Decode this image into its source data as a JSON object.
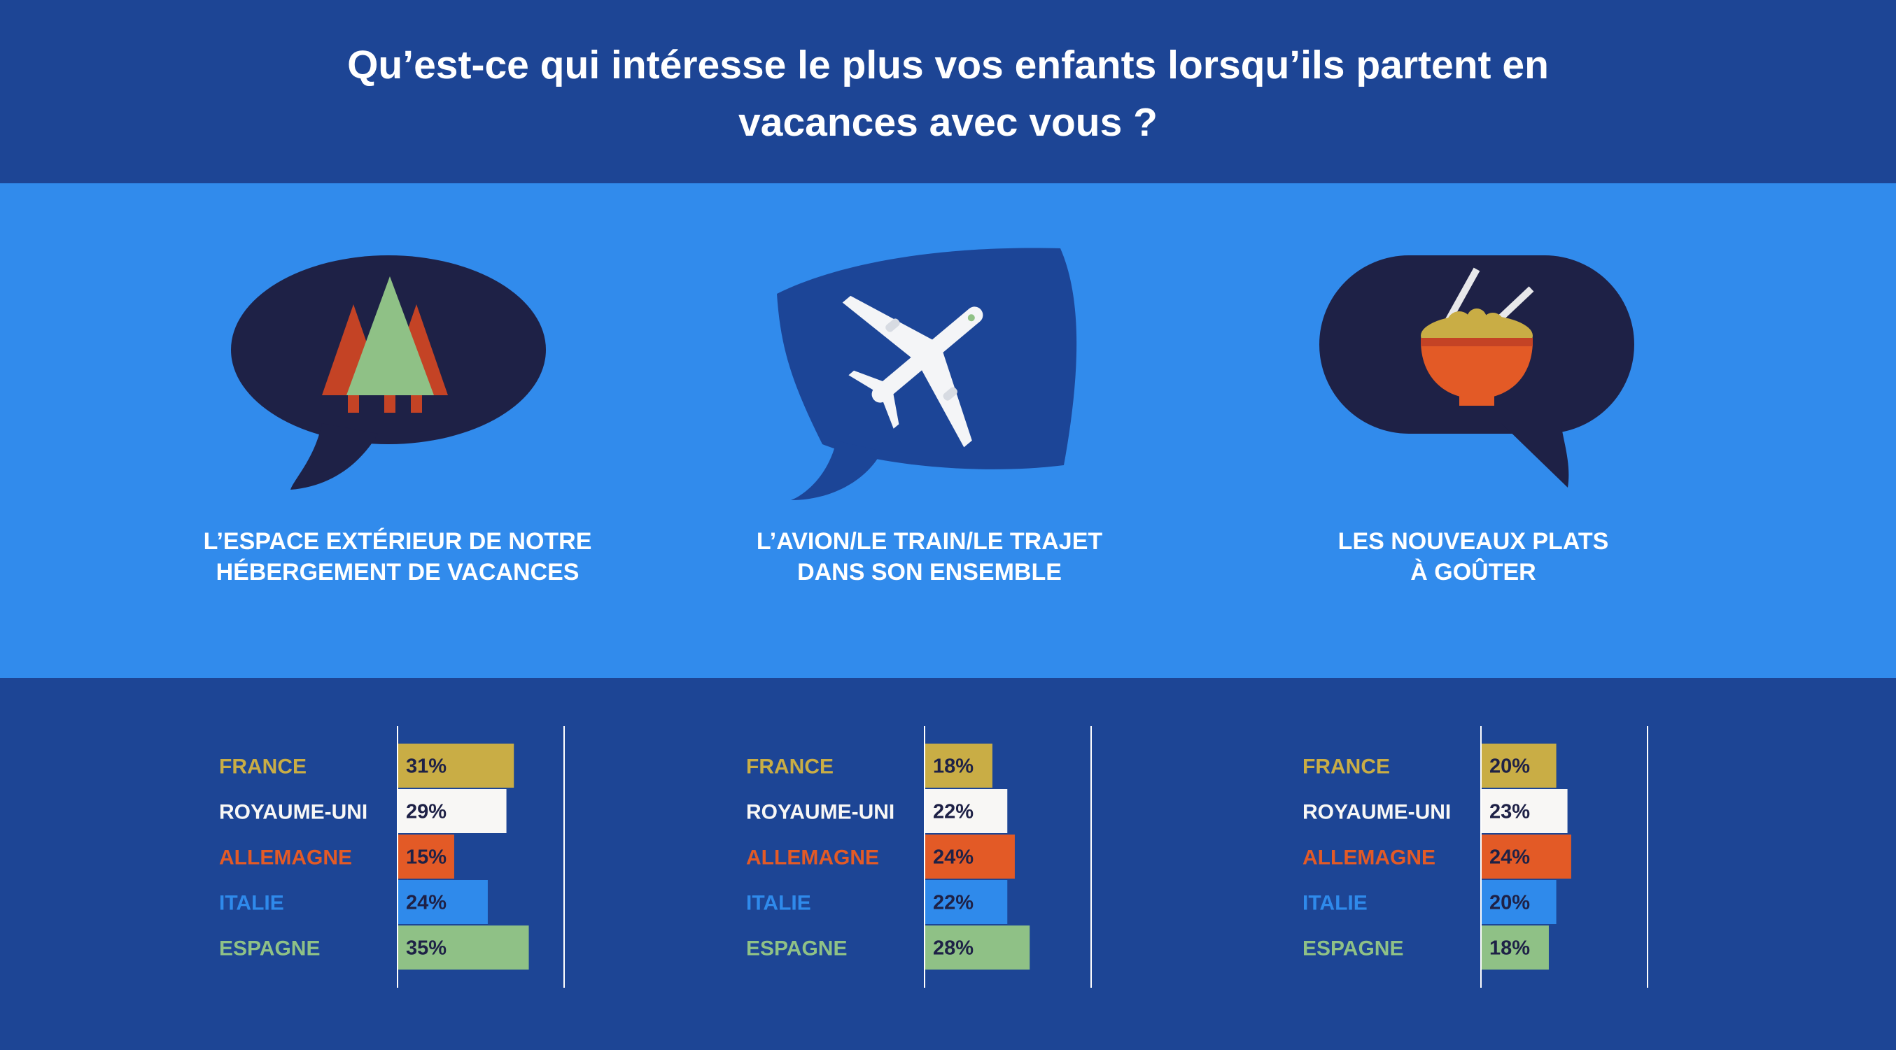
{
  "header": {
    "title_line1": "Qu’est-ce qui intéresse le plus vos enfants lorsqu’ils partent en",
    "title_line2": "vacances avec vous ?"
  },
  "colors": {
    "navy": "#1d4595",
    "sky": "#318bec",
    "dark_bubble": "#1e2146",
    "france": "#c9ad45",
    "royaume_uni": "#f8f7f5",
    "allemagne": "#e35a26",
    "italie": "#2f8aeb",
    "espagne": "#8fc186",
    "pct_text": "#1e2146"
  },
  "panels": [
    {
      "icon": "forest-icon",
      "caption_line1": "L’ESPACE EXTÉRIEUR DE NOTRE",
      "caption_line2": "HÉBERGEMENT DE VACANCES"
    },
    {
      "icon": "airplane-icon",
      "caption_line1": "L’AVION/LE TRAIN/LE TRAJET",
      "caption_line2": "DANS SON ENSEMBLE"
    },
    {
      "icon": "food-bowl-icon",
      "caption_line1": "LES NOUVEAUX PLATS",
      "caption_line2": "À GOÛTER"
    }
  ],
  "chart_data": [
    {
      "type": "bar",
      "orientation": "horizontal",
      "title": "L’ESPACE EXTÉRIEUR DE NOTRE HÉBERGEMENT DE VACANCES",
      "categories": [
        "FRANCE",
        "ROYAUME-UNI",
        "ALLEMAGNE",
        "ITALIE",
        "ESPAGNE"
      ],
      "values": [
        31,
        29,
        15,
        24,
        35
      ],
      "labels": [
        "31%",
        "29%",
        "15%",
        "24%",
        "35%"
      ],
      "xlim": [
        0,
        45
      ],
      "unit": "%"
    },
    {
      "type": "bar",
      "orientation": "horizontal",
      "title": "L’AVION/LE TRAIN/LE TRAJET DANS SON ENSEMBLE",
      "categories": [
        "FRANCE",
        "ROYAUME-UNI",
        "ALLEMAGNE",
        "ITALIE",
        "ESPAGNE"
      ],
      "values": [
        18,
        22,
        24,
        22,
        28
      ],
      "labels": [
        "18%",
        "22%",
        "24%",
        "22%",
        "28%"
      ],
      "xlim": [
        0,
        45
      ],
      "unit": "%"
    },
    {
      "type": "bar",
      "orientation": "horizontal",
      "title": "LES NOUVEAUX PLATS À GOÛTER",
      "categories": [
        "FRANCE",
        "ROYAUME-UNI",
        "ALLEMAGNE",
        "ITALIE",
        "ESPAGNE"
      ],
      "values": [
        20,
        23,
        24,
        20,
        18
      ],
      "labels": [
        "20%",
        "23%",
        "24%",
        "20%",
        "18%"
      ],
      "xlim": [
        0,
        45
      ],
      "unit": "%"
    }
  ]
}
